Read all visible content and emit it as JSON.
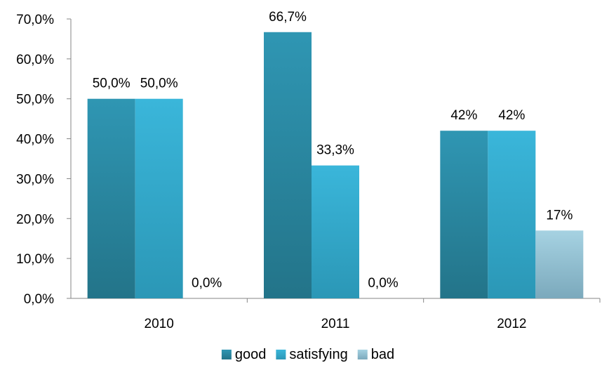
{
  "chart_data": {
    "type": "bar",
    "title": "",
    "xlabel": "",
    "ylabel": "",
    "ylim": [
      0,
      70
    ],
    "y_ticks": [
      0,
      10,
      20,
      30,
      40,
      50,
      60,
      70
    ],
    "y_tick_labels": [
      "0,0%",
      "10,0%",
      "20,0%",
      "30,0%",
      "40,0%",
      "50,0%",
      "60,0%",
      "70,0%"
    ],
    "categories": [
      "2010",
      "2011",
      "2012"
    ],
    "series": [
      {
        "name": "good",
        "values": [
          50.0,
          66.7,
          42
        ],
        "labels": [
          "50,0%",
          "66,7%",
          "42%"
        ],
        "color": "#2E8CA8"
      },
      {
        "name": "satisfying",
        "values": [
          50.0,
          33.3,
          42
        ],
        "labels": [
          "50,0%",
          "33,3%",
          "42%"
        ],
        "color": "#35AFD2"
      },
      {
        "name": "bad",
        "values": [
          0.0,
          0.0,
          17
        ],
        "labels": [
          "0,0%",
          "0,0%",
          "17%"
        ],
        "color": "#93C3D6"
      }
    ],
    "grid": false,
    "legend_position": "bottom"
  }
}
